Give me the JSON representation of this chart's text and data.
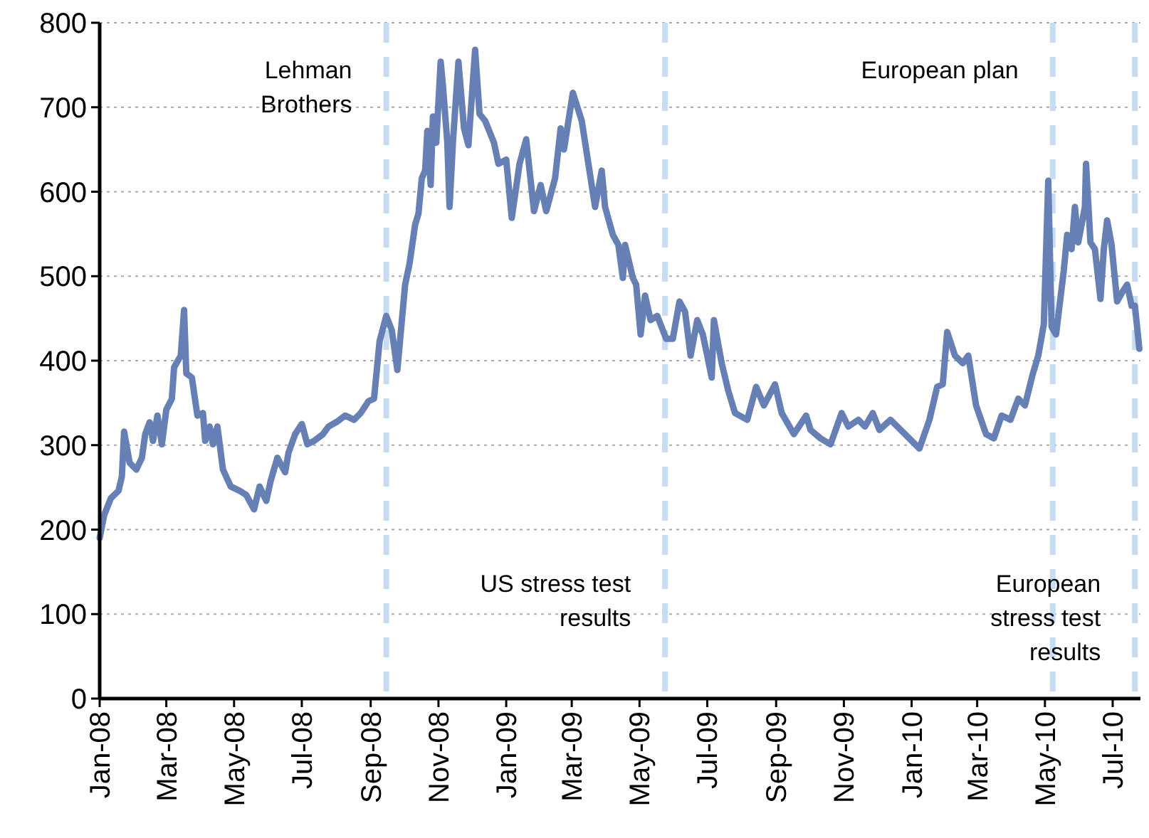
{
  "chart_data": {
    "type": "line",
    "x": [
      "2008-01-01",
      "2008-01-05",
      "2008-01-11",
      "2008-01-18",
      "2008-01-21",
      "2008-01-23",
      "2008-01-28",
      "2008-02-03",
      "2008-02-08",
      "2008-02-11",
      "2008-02-15",
      "2008-02-18",
      "2008-02-22",
      "2008-02-26",
      "2008-03-01",
      "2008-03-06",
      "2008-03-08",
      "2008-03-14",
      "2008-03-17",
      "2008-03-19",
      "2008-03-24",
      "2008-03-29",
      "2008-04-03",
      "2008-04-05",
      "2008-04-09",
      "2008-04-12",
      "2008-04-16",
      "2008-04-21",
      "2008-04-28",
      "2008-05-06",
      "2008-05-12",
      "2008-05-19",
      "2008-05-24",
      "2008-05-30",
      "2008-06-03",
      "2008-06-09",
      "2008-06-16",
      "2008-06-19",
      "2008-06-25",
      "2008-07-01",
      "2008-07-06",
      "2008-07-12",
      "2008-07-20",
      "2008-07-25",
      "2008-08-02",
      "2008-08-09",
      "2008-08-17",
      "2008-08-23",
      "2008-08-30",
      "2008-09-04",
      "2008-09-09",
      "2008-09-15",
      "2008-09-20",
      "2008-09-25",
      "2008-10-02",
      "2008-10-06",
      "2008-10-11",
      "2008-10-14",
      "2008-10-17",
      "2008-10-20",
      "2008-10-22",
      "2008-10-25",
      "2008-10-27",
      "2008-10-30",
      "2008-11-03",
      "2008-11-05",
      "2008-11-09",
      "2008-11-11",
      "2008-11-14",
      "2008-11-19",
      "2008-11-24",
      "2008-11-28",
      "2008-12-04",
      "2008-12-08",
      "2008-12-13",
      "2008-12-21",
      "2008-12-25",
      "2009-01-01",
      "2009-01-06",
      "2009-01-13",
      "2009-01-19",
      "2009-01-26",
      "2009-02-01",
      "2009-02-06",
      "2009-02-14",
      "2009-02-19",
      "2009-02-22",
      "2009-03-02",
      "2009-03-10",
      "2009-03-16",
      "2009-03-22",
      "2009-03-28",
      "2009-03-31",
      "2009-04-07",
      "2009-04-12",
      "2009-04-16",
      "2009-04-18",
      "2009-04-25",
      "2009-04-28",
      "2009-05-02",
      "2009-05-06",
      "2009-05-11",
      "2009-05-17",
      "2009-05-25",
      "2009-05-31",
      "2009-06-06",
      "2009-06-11",
      "2009-06-16",
      "2009-06-22",
      "2009-06-27",
      "2009-07-01",
      "2009-07-05",
      "2009-07-07",
      "2009-07-14",
      "2009-07-20",
      "2009-07-26",
      "2009-08-06",
      "2009-08-14",
      "2009-08-21",
      "2009-08-31",
      "2009-09-06",
      "2009-09-17",
      "2009-09-28",
      "2009-10-02",
      "2009-10-11",
      "2009-10-20",
      "2009-10-30",
      "2009-11-05",
      "2009-11-14",
      "2009-11-20",
      "2009-11-27",
      "2009-12-03",
      "2009-12-13",
      "2009-12-26",
      "2010-01-08",
      "2010-01-17",
      "2010-01-24",
      "2010-01-29",
      "2010-02-02",
      "2010-02-09",
      "2010-02-16",
      "2010-02-21",
      "2010-02-28",
      "2010-03-09",
      "2010-03-16",
      "2010-03-23",
      "2010-03-31",
      "2010-04-07",
      "2010-04-13",
      "2010-04-20",
      "2010-04-25",
      "2010-04-30",
      "2010-05-04",
      "2010-05-07",
      "2010-05-11",
      "2010-05-18",
      "2010-05-21",
      "2010-05-25",
      "2010-05-28",
      "2010-05-31",
      "2010-06-06",
      "2010-06-07",
      "2010-06-11",
      "2010-06-15",
      "2010-06-20",
      "2010-06-23",
      "2010-06-26",
      "2010-06-30",
      "2010-07-05",
      "2010-07-10",
      "2010-07-14",
      "2010-07-18",
      "2010-07-21",
      "2010-07-25"
    ],
    "series": [
      {
        "color": "#6680b5",
        "values": [
          190,
          217,
          237,
          246,
          263,
          316,
          279,
          271,
          285,
          313,
          327,
          305,
          335,
          301,
          342,
          355,
          392,
          406,
          460,
          385,
          380,
          335,
          338,
          305,
          322,
          301,
          322,
          271,
          251,
          246,
          241,
          224,
          251,
          234,
          258,
          285,
          268,
          291,
          313,
          325,
          301,
          305,
          313,
          322,
          328,
          335,
          330,
          338,
          352,
          355,
          423,
          453,
          436,
          389,
          490,
          515,
          561,
          574,
          616,
          625,
          672,
          608,
          689,
          658,
          754,
          726,
          658,
          582,
          658,
          754,
          675,
          655,
          768,
          692,
          684,
          658,
          633,
          638,
          569,
          633,
          662,
          577,
          608,
          577,
          616,
          675,
          650,
          717,
          684,
          633,
          582,
          625,
          582,
          549,
          537,
          498,
          537,
          498,
          490,
          431,
          477,
          448,
          453,
          426,
          426,
          470,
          458,
          406,
          448,
          431,
          406,
          380,
          448,
          397,
          364,
          338,
          330,
          369,
          347,
          372,
          338,
          313,
          335,
          318,
          308,
          301,
          338,
          322,
          330,
          322,
          338,
          318,
          330,
          313,
          296,
          330,
          369,
          372,
          434,
          406,
          397,
          406,
          347,
          313,
          308,
          335,
          330,
          355,
          347,
          384,
          406,
          443,
          613,
          440,
          431,
          507,
          549,
          532,
          582,
          540,
          582,
          633,
          540,
          532,
          473,
          532,
          566,
          537,
          470,
          482,
          490,
          465,
          465,
          414
        ]
      }
    ],
    "xlim": [
      "2008-01-01",
      "2010-07-26"
    ],
    "xticks": [
      {
        "value": "2008-01-01",
        "label": "Jan-08"
      },
      {
        "value": "2008-03-01",
        "label": "Mar-08"
      },
      {
        "value": "2008-05-01",
        "label": "May-08"
      },
      {
        "value": "2008-07-01",
        "label": "Jul-08"
      },
      {
        "value": "2008-09-01",
        "label": "Sep-08"
      },
      {
        "value": "2008-11-01",
        "label": "Nov-08"
      },
      {
        "value": "2009-01-01",
        "label": "Jan-09"
      },
      {
        "value": "2009-03-01",
        "label": "Mar-09"
      },
      {
        "value": "2009-05-01",
        "label": "May-09"
      },
      {
        "value": "2009-07-01",
        "label": "Jul-09"
      },
      {
        "value": "2009-09-01",
        "label": "Sep-09"
      },
      {
        "value": "2009-11-01",
        "label": "Nov-09"
      },
      {
        "value": "2010-01-01",
        "label": "Jan-10"
      },
      {
        "value": "2010-03-01",
        "label": "Mar-10"
      },
      {
        "value": "2010-05-01",
        "label": "May-10"
      },
      {
        "value": "2010-07-01",
        "label": "Jul-10"
      }
    ],
    "ylim": [
      0,
      800
    ],
    "yticks": [
      0,
      100,
      200,
      300,
      400,
      500,
      600,
      700,
      800
    ],
    "grid": "y",
    "line_style": "solid",
    "marker": "none",
    "ref_lines": [
      {
        "axis": "x",
        "value": "2008-09-15",
        "label": "Lehman Brothers",
        "color": "#c5dcf2",
        "line_style": "dashed"
      },
      {
        "axis": "x",
        "value": "2009-05-24",
        "label": "US stress test results",
        "color": "#c5dcf2",
        "line_style": "dashed"
      },
      {
        "axis": "x",
        "value": "2010-05-08",
        "label": "European plan",
        "color": "#c5dcf2",
        "line_style": "dashed"
      },
      {
        "axis": "x",
        "value": "2010-07-21",
        "label": "European stress test results",
        "color": "#c5dcf2",
        "line_style": "dashed"
      }
    ]
  }
}
